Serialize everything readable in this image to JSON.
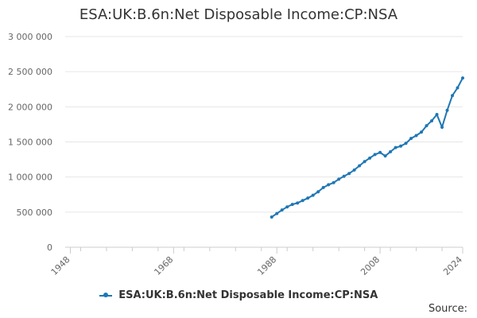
{
  "chart_data": {
    "type": "line",
    "title": "ESA:UK:B.6n:Net Disposable Income:CP:NSA",
    "source_label": "Source:",
    "x_ticks": [
      1948,
      1968,
      1988,
      2008,
      2024
    ],
    "y_ticks": [
      0,
      500000,
      1000000,
      1500000,
      2000000,
      2500000,
      3000000
    ],
    "y_tick_labels": [
      "0",
      "500 000",
      "1 000 000",
      "1 500 000",
      "2 000 000",
      "2 500 000",
      "3 000 000"
    ],
    "xlim": [
      1947,
      2024
    ],
    "ylim": [
      0,
      3000000
    ],
    "grid": true,
    "legend_position": "bottom",
    "series": [
      {
        "name": "ESA:UK:B.6n:Net Disposable Income:CP:NSA",
        "color": "#1f77b4",
        "x": [
          1987,
          1988,
          1989,
          1990,
          1991,
          1992,
          1993,
          1994,
          1995,
          1996,
          1997,
          1998,
          1999,
          2000,
          2001,
          2002,
          2003,
          2004,
          2005,
          2006,
          2007,
          2008,
          2009,
          2010,
          2011,
          2012,
          2013,
          2014,
          2015,
          2016,
          2017,
          2018,
          2019,
          2020,
          2021,
          2022,
          2023,
          2024
        ],
        "y": [
          430000,
          480000,
          530000,
          575000,
          610000,
          630000,
          665000,
          700000,
          740000,
          790000,
          850000,
          890000,
          920000,
          970000,
          1010000,
          1050000,
          1100000,
          1160000,
          1220000,
          1270000,
          1320000,
          1350000,
          1300000,
          1360000,
          1420000,
          1440000,
          1480000,
          1550000,
          1590000,
          1640000,
          1730000,
          1800000,
          1890000,
          1710000,
          1950000,
          2160000,
          2270000,
          2410000
        ]
      }
    ]
  }
}
